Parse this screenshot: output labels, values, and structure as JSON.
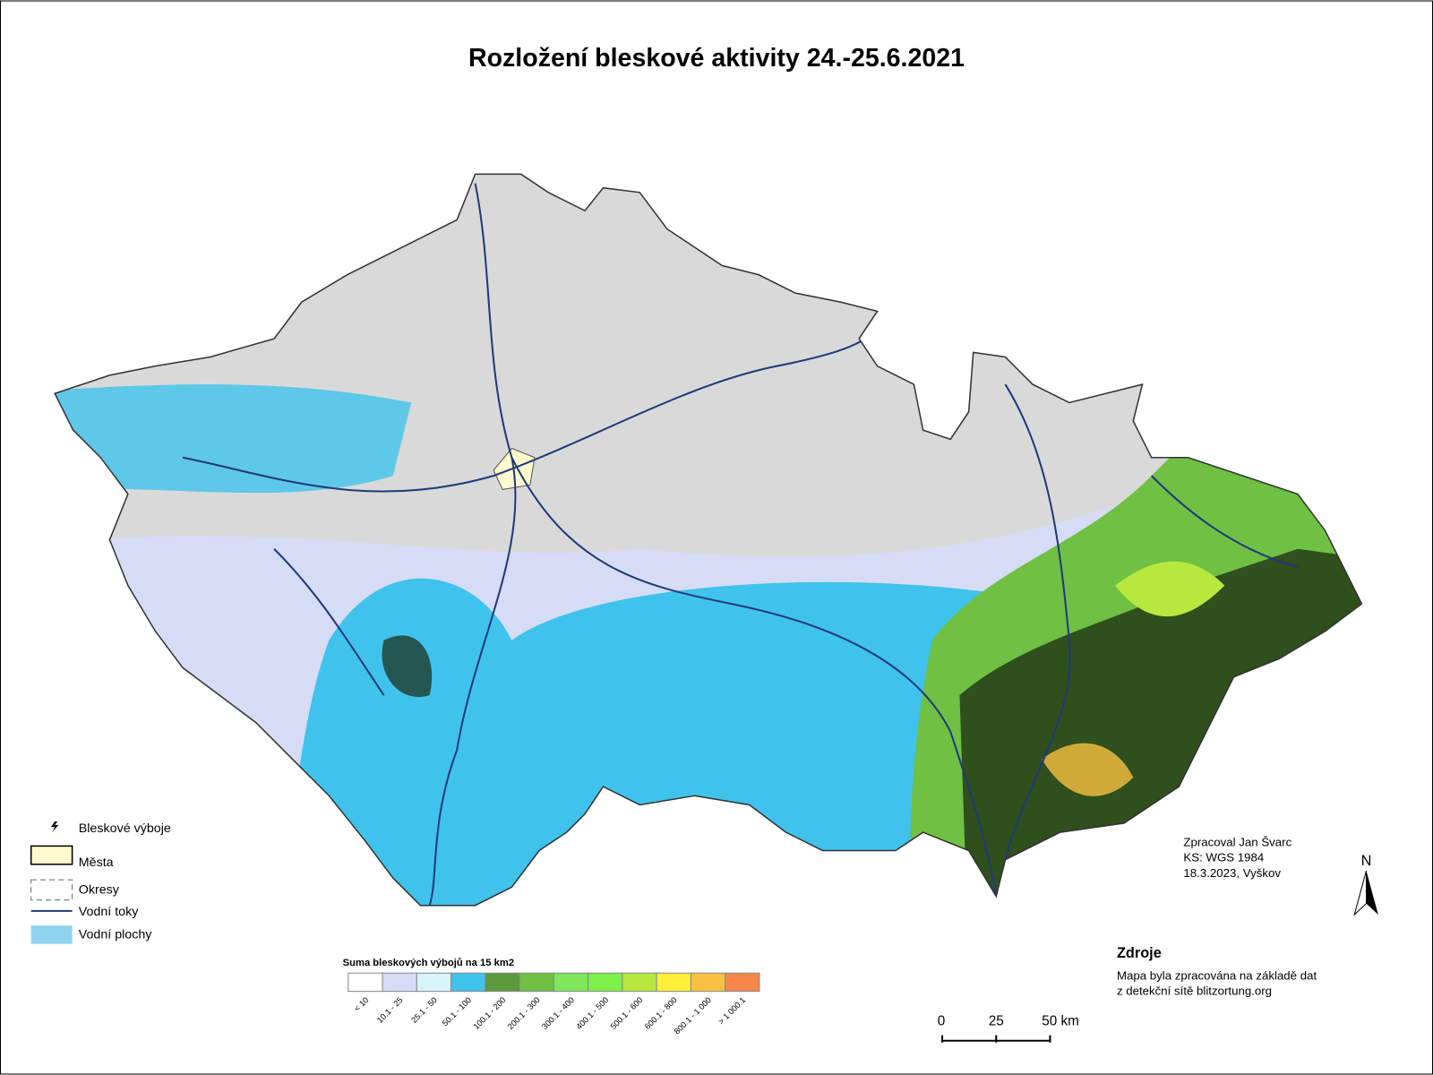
{
  "title": "Rozložení bleskové aktivity 24.-25.6.2021",
  "legend": {
    "items": [
      {
        "label": "Bleskové výboje"
      },
      {
        "label": "Města"
      },
      {
        "label": "Okresy"
      },
      {
        "label": "Vodní toky"
      },
      {
        "label": "Vodní plochy"
      }
    ]
  },
  "color_scale": {
    "title": "Suma bleskových výbojů na 15 km2",
    "classes": [
      {
        "label": "< 10",
        "color": "#ffffff"
      },
      {
        "label": "10.1 - 25",
        "color": "#d6dcf5"
      },
      {
        "label": "25.1 - 50",
        "color": "#d8f4fb"
      },
      {
        "label": "50.1 - 100",
        "color": "#3fc3ec"
      },
      {
        "label": "100.1 - 200",
        "color": "#5a9a3c"
      },
      {
        "label": "200.1 - 300",
        "color": "#6fc043"
      },
      {
        "label": "300.1 - 400",
        "color": "#7ee85a"
      },
      {
        "label": "400.1 - 500",
        "color": "#7ef04a"
      },
      {
        "label": "500.1 - 600",
        "color": "#b6e83e"
      },
      {
        "label": "600.1 - 800",
        "color": "#ffef3a"
      },
      {
        "label": "800.1 - 1 000",
        "color": "#f8c040"
      },
      {
        "label": "> 1 000.1",
        "color": "#f5874a"
      }
    ]
  },
  "scale_bar": {
    "labels": [
      "0",
      "25",
      "50 km"
    ]
  },
  "north": "N",
  "credits": [
    "Zpracoval Jan Švarc",
    "KS: WGS 1984",
    "18.3.2023, Vyškov"
  ],
  "sources": {
    "heading": "Zdroje",
    "lines": [
      "Mapa byla zpracována na základě dat",
      "z detekční sítě blitzortung.org"
    ]
  }
}
